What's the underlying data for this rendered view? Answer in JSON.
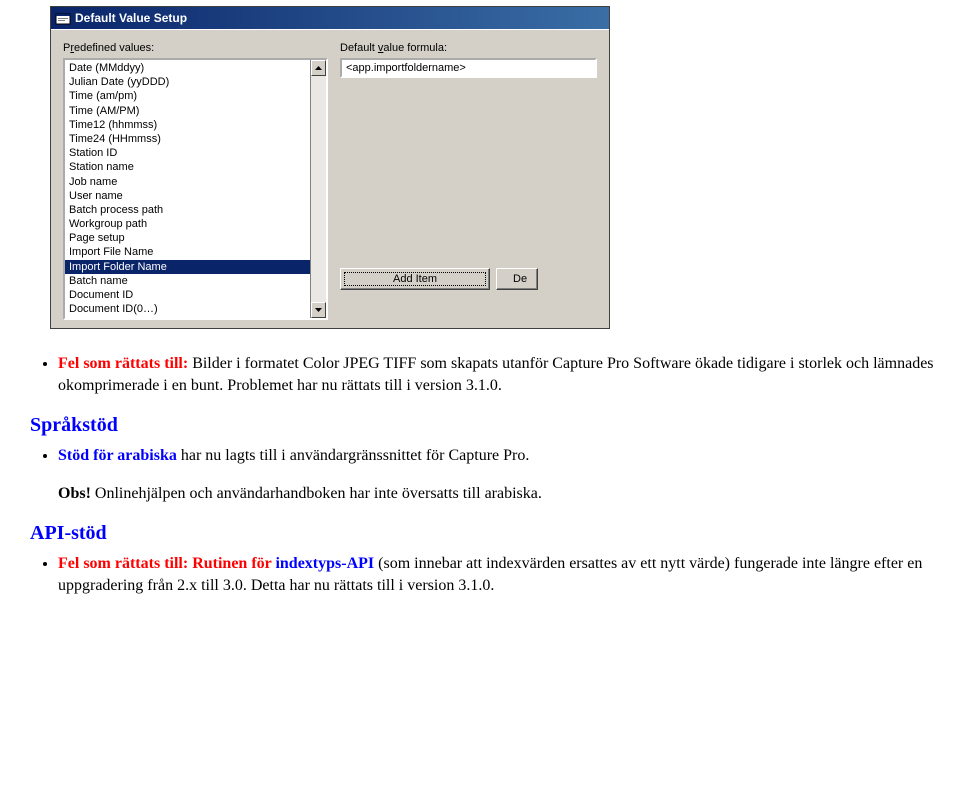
{
  "dialog": {
    "title": "Default Value Setup",
    "predefined_label_pre": "P",
    "predefined_label_ul": "r",
    "predefined_label_post": "edefined values:",
    "formula_label_pre": "Default ",
    "formula_label_ul": "v",
    "formula_label_post": "alue formula:",
    "formula_value": "<app.importfoldername>",
    "list_items": [
      "Date (MMddyy)",
      "Julian Date (yyDDD)",
      "Time (am/pm)",
      "Time (AM/PM)",
      "Time12 (hhmmss)",
      "Time24 (HHmmss)",
      "Station ID",
      "Station name",
      "Job name",
      "User name",
      "Batch process path",
      "Workgroup path",
      "Page setup",
      "Import File Name",
      "Import Folder Name",
      "Batch name",
      "Document ID",
      "Document ID(0…)"
    ],
    "selected_index": 14,
    "buttons": {
      "add": "Add Item",
      "next_partial": "De"
    },
    "colors": {
      "titlebar_start": "#0a246a",
      "titlebar_end": "#3a6ea5",
      "face": "#d4d0c8",
      "selection": "#0a246a"
    }
  },
  "doc": {
    "bullet1_prefix": "Fel som rättats till:",
    "bullet1_rest": " Bilder i formatet Color JPEG TIFF som skapats utanför Capture Pro Software ökade tidigare i storlek och lämnades okomprimerade i en bunt. Problemet har nu rättats till i version 3.1.0.",
    "heading1": "Språkstöd",
    "bullet2_prefix": "Stöd för arabiska",
    "bullet2_rest": " har nu lagts till i användargränssnittet för Capture Pro.",
    "note_prefix": "Obs!",
    "note_rest": " Onlinehjälpen och användarhandboken har inte översatts till arabiska.",
    "heading2": "API-stöd",
    "bullet3_prefix": "Fel som rättats till: ",
    "bullet3_mid": "Rutinen för ",
    "bullet3_api": "indextyps-API",
    "bullet3_rest": " (som innebar att indexvärden ersattes av ett nytt värde) fungerade inte längre efter en uppgradering från 2.x till 3.0. Detta har nu rättats till i version 3.1.0.",
    "colors": {
      "red": "#ff0000",
      "blue": "#0000ff"
    }
  }
}
